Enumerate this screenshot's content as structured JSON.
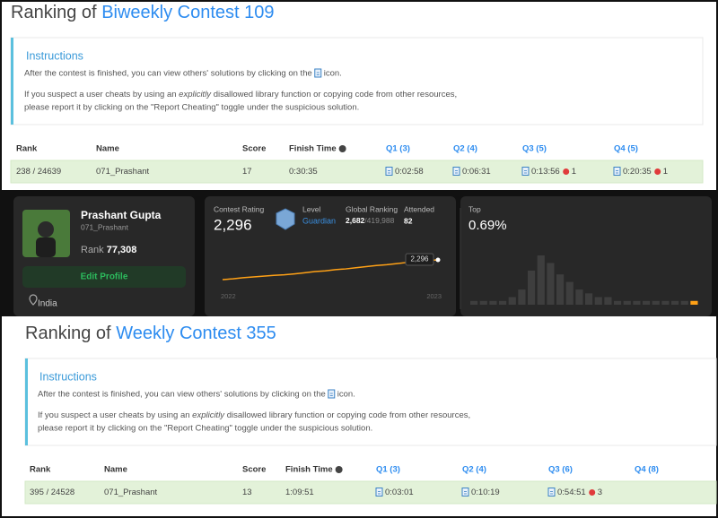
{
  "contests": [
    {
      "title_prefix": "Ranking of",
      "title_name": "Biweekly Contest 109",
      "instructions": {
        "heading": "Instructions",
        "line1_before": "After the contest is finished, you can view others' solutions by clicking on the",
        "line1_after": "icon.",
        "line2_before": "If you suspect a user cheats by using an",
        "line2_em": "explicitly",
        "line2_after": "disallowed library function or copying code from other resources,",
        "line3": "please report it by clicking on the \"Report Cheating\" toggle under the suspicious solution."
      },
      "table": {
        "headers": [
          "Rank",
          "Name",
          "Score",
          "Finish Time",
          "Q1 (3)",
          "Q2 (4)",
          "Q3 (5)",
          "Q4 (5)"
        ],
        "row": [
          "238 / 24639",
          "071_Prashant",
          "17",
          "0:30:35",
          "0:02:58",
          "0:06:31",
          "0:13:56",
          "0:20:35"
        ],
        "wrong": {
          "6": 1,
          "7": 1
        }
      }
    },
    {
      "title_prefix": "Ranking of",
      "title_name": "Weekly Contest 355",
      "instructions": {
        "heading": "Instructions",
        "line1_before": "After the contest is finished, you can view others' solutions by clicking on the",
        "line1_after": "icon.",
        "line2_before": "If you suspect a user cheats by using an",
        "line2_em": "explicitly",
        "line2_after": "disallowed library function or copying code from other resources,",
        "line3": "please report it by clicking on the \"Report Cheating\" toggle under the suspicious solution."
      },
      "table": {
        "headers": [
          "Rank",
          "Name",
          "Score",
          "Finish Time",
          "Q1 (3)",
          "Q2 (4)",
          "Q3 (6)",
          "Q4 (8)"
        ],
        "row": [
          "395 / 24528",
          "071_Prashant",
          "13",
          "1:09:51",
          "0:03:01",
          "0:10:19",
          "0:54:51"
        ],
        "wrong": {
          "6": 3
        }
      }
    }
  ],
  "profile": {
    "name": "Prashant Gupta",
    "username": "071_Prashant",
    "rank_label": "Rank",
    "rank": "77,308",
    "button": "Edit Profile",
    "location": "India",
    "rating_label": "Contest Rating",
    "rating": "2,296",
    "level_label": "Level",
    "level": "Guardian",
    "global_label": "Global Ranking",
    "global_rank": "2,682",
    "global_total": "/419,988",
    "attended_label": "Attended",
    "attended": "82",
    "rating_chart": {
      "type": "line",
      "values": [
        1780,
        1800,
        1830,
        1850,
        1870,
        1890,
        1905,
        1930,
        1960,
        1990,
        2010,
        2040,
        2060,
        2090,
        2120,
        2150,
        2170,
        2200,
        2230,
        2250,
        2280,
        2296
      ],
      "tooltip": "2,296",
      "x_start": "2022",
      "x_end": "2023",
      "color": "#ffa116"
    },
    "top_label": "Top",
    "top_value": "0.69%",
    "top_histogram": {
      "type": "bar",
      "values": [
        1,
        1,
        1,
        1,
        2,
        4,
        9,
        13,
        11,
        8,
        6,
        4,
        3,
        2,
        2,
        1,
        1,
        1,
        1,
        1,
        1,
        1,
        1,
        1
      ],
      "highlight_index": 23,
      "color": "#3e3e3e",
      "highlight_color": "#ffa116"
    }
  }
}
